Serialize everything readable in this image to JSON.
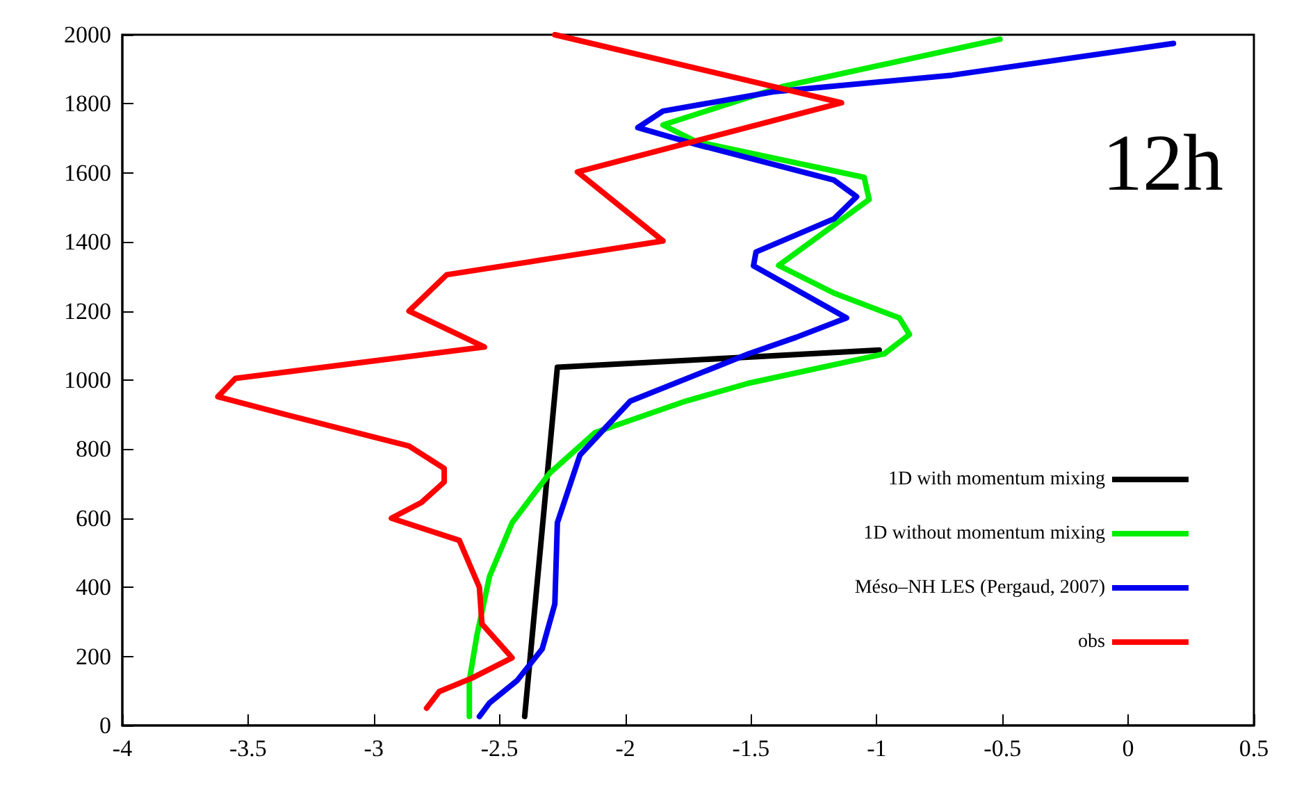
{
  "chart_data": {
    "type": "line",
    "xlim": [
      -4,
      0.5
    ],
    "xticks": [
      -4,
      -3.5,
      -3,
      -2.5,
      -2,
      -1.5,
      -1,
      -0.5,
      0,
      0.5
    ],
    "ylim": [
      0,
      2000
    ],
    "yticks": [
      0,
      200,
      400,
      600,
      800,
      1000,
      1200,
      1400,
      1600,
      1800,
      2000
    ],
    "grid": false,
    "legend": "right",
    "marker": "none",
    "line_style": "solid",
    "annotations": [
      "12h"
    ],
    "series": [
      {
        "name": "1D with momentum mixing",
        "color": "#000000",
        "x": [
          -2.4,
          -2.27,
          -0.99
        ],
        "values": [
          26,
          1037,
          1087
        ]
      },
      {
        "name": "1D without momentum mixing",
        "color": "#00ee00",
        "x": [
          -2.62,
          -2.62,
          -2.59,
          -2.54,
          -2.45,
          -2.3,
          -2.12,
          -1.76,
          -1.51,
          -0.97,
          -0.87,
          -0.91,
          -1.17,
          -1.39,
          -1.03,
          -1.05,
          -1.72,
          -1.85,
          -1.37,
          -0.51
        ],
        "values": [
          26,
          130,
          261,
          431,
          587,
          731,
          848,
          939,
          991,
          1076,
          1132,
          1180,
          1252,
          1332,
          1523,
          1587,
          1691,
          1739,
          1851,
          1987
        ]
      },
      {
        "name": "Méso–NH LES (Pergaud, 2007)",
        "color": "#0000ee",
        "x": [
          -2.58,
          -2.54,
          -2.43,
          -2.33,
          -2.28,
          -2.27,
          -2.18,
          -1.98,
          -1.51,
          -1.32,
          -1.12,
          -1.49,
          -1.48,
          -1.17,
          -1.08,
          -1.17,
          -1.72,
          -1.95,
          -1.85,
          -1.41,
          -0.7,
          0.18
        ],
        "values": [
          26,
          65,
          130,
          222,
          352,
          587,
          783,
          939,
          1076,
          1124,
          1180,
          1331,
          1371,
          1467,
          1531,
          1579,
          1683,
          1731,
          1779,
          1835,
          1883,
          1975
        ]
      },
      {
        "name": "obs",
        "color": "#ff0000",
        "x": [
          -2.79,
          -2.74,
          -2.61,
          -2.45,
          -2.57,
          -2.58,
          -2.66,
          -2.93,
          -2.81,
          -2.72,
          -2.72,
          -2.86,
          -3.35,
          -3.62,
          -3.55,
          -2.56,
          -2.86,
          -2.71,
          -1.85,
          -2.19,
          -1.14,
          -2.28
        ],
        "values": [
          50,
          98,
          137,
          196,
          294,
          400,
          536,
          600,
          646,
          705,
          744,
          809,
          900,
          952,
          1005,
          1096,
          1200,
          1305,
          1403,
          1603,
          1803,
          2000
        ]
      }
    ]
  }
}
